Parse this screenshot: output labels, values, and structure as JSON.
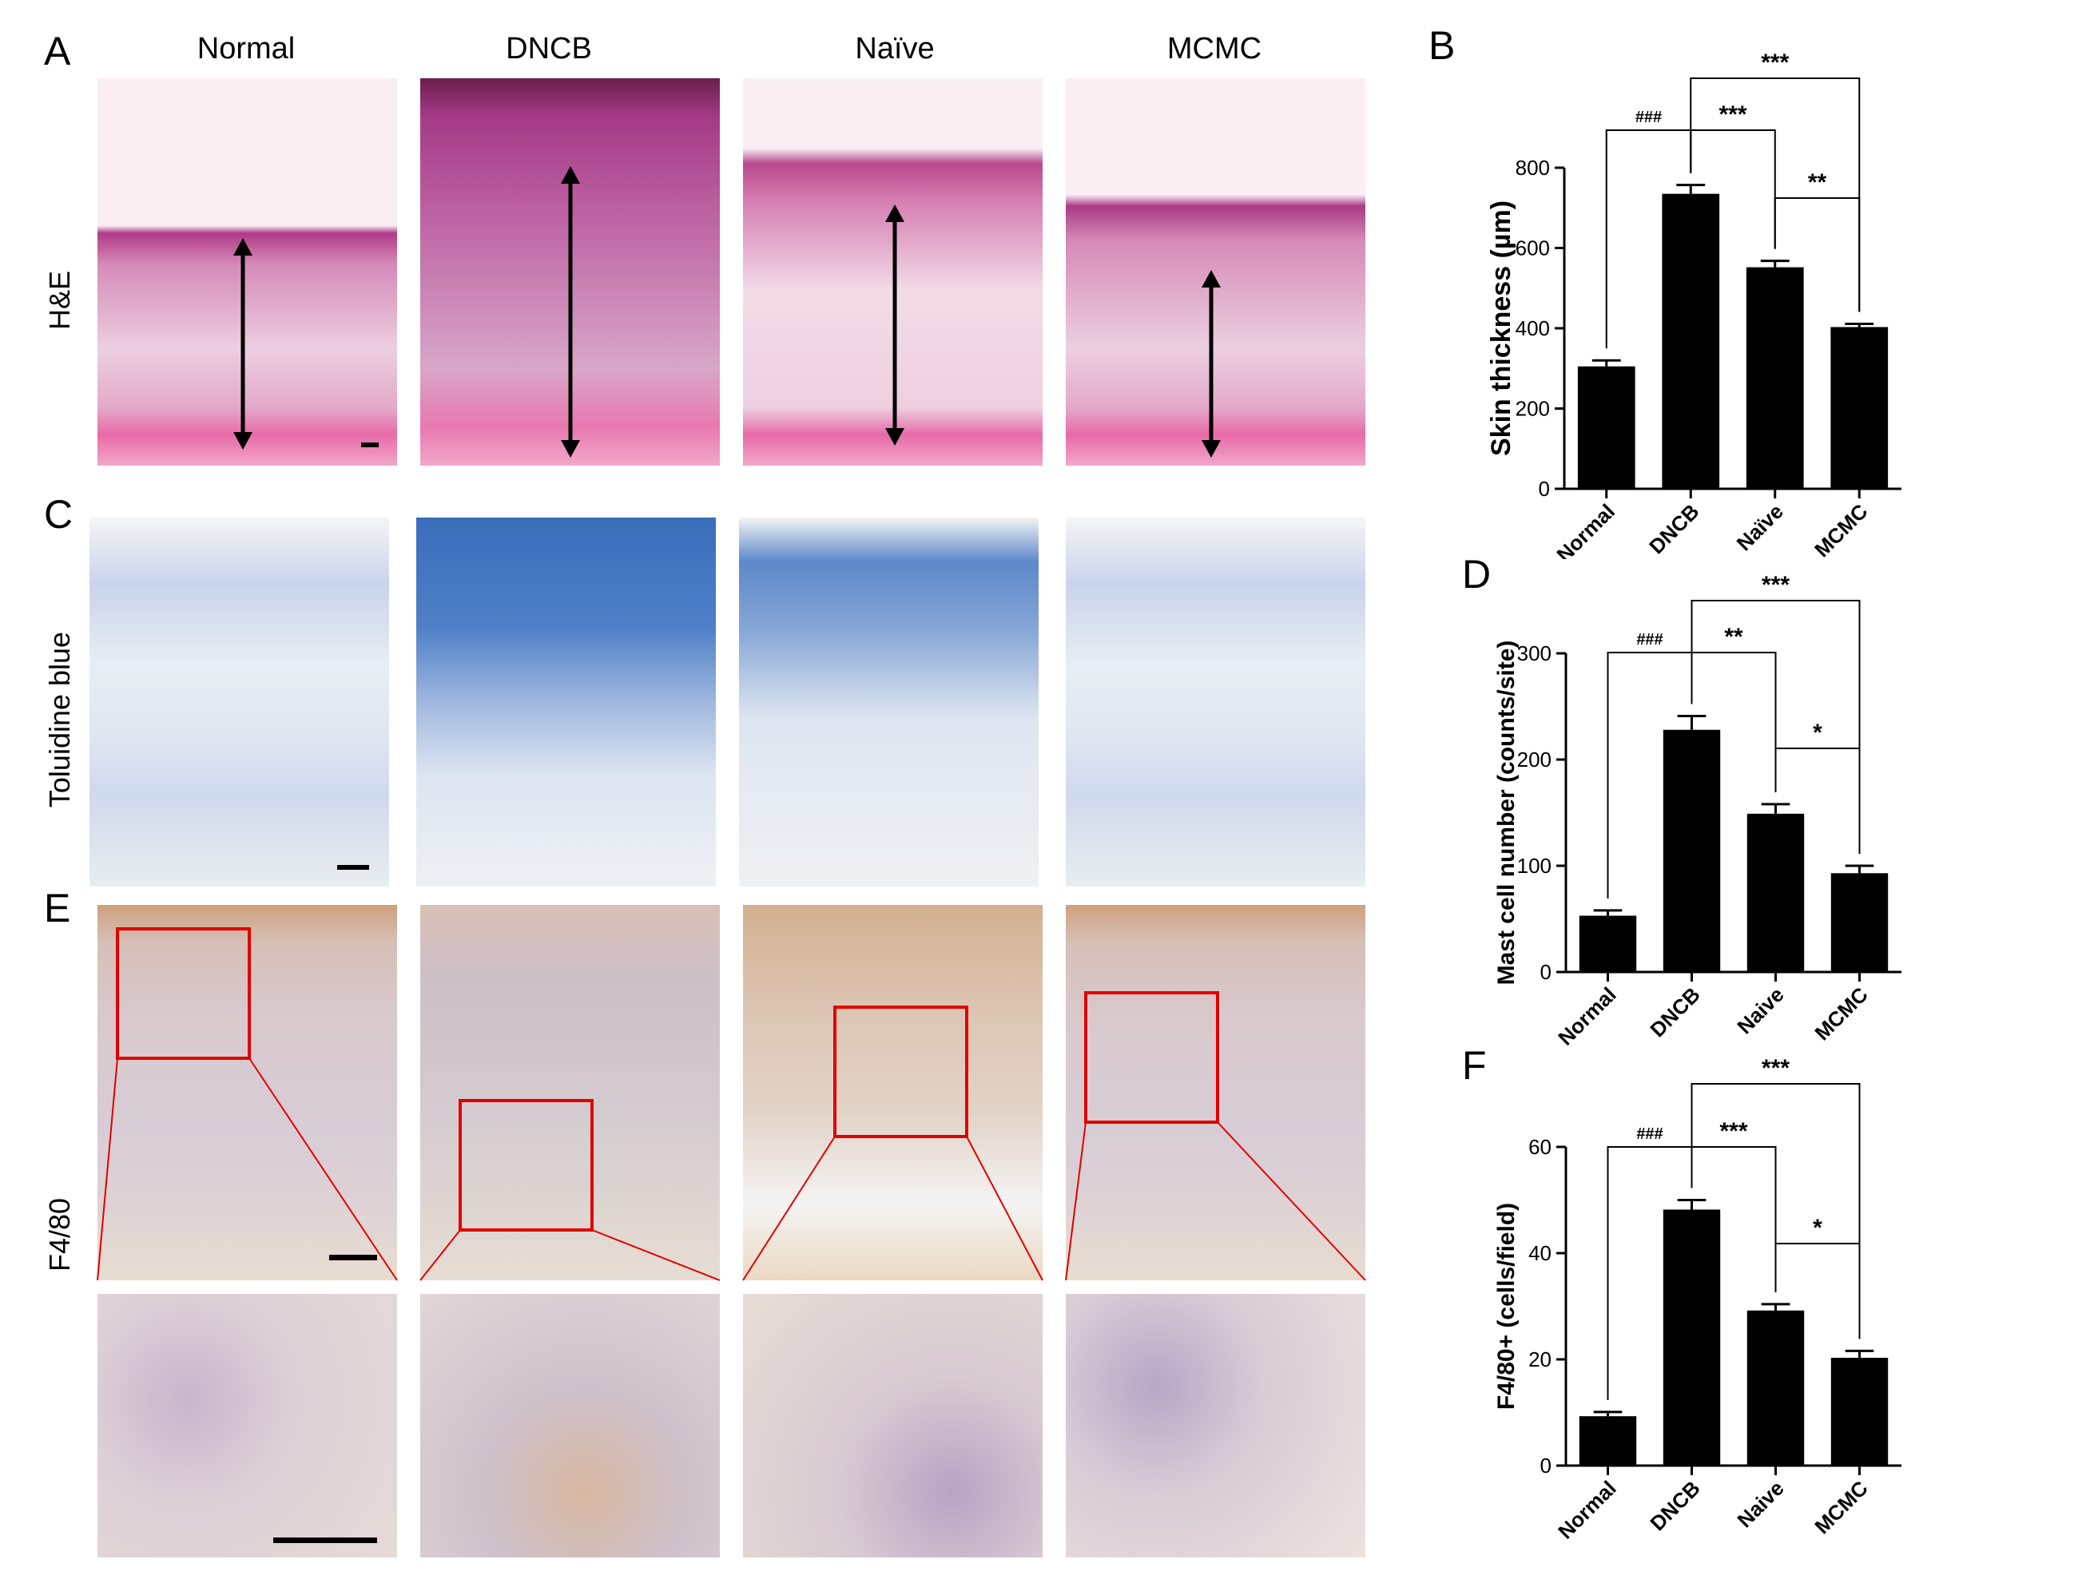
{
  "panel_labels": {
    "A": "A",
    "B": "B",
    "C": "C",
    "D": "D",
    "E": "E",
    "F": "F"
  },
  "columns": [
    "Normal",
    "DNCB",
    "Naïve",
    "MCMC"
  ],
  "rows": {
    "he": "H&E",
    "tb": "Toluidine blue",
    "f4": "F4/80"
  },
  "chart_data": [
    {
      "type": "bar",
      "panel": "B",
      "categories": [
        "Normal",
        "DNCB",
        "Naïve",
        "MCMC"
      ],
      "values": [
        305,
        735,
        552,
        403
      ],
      "errors": [
        15,
        22,
        16,
        8
      ],
      "ylabel": "Skin thickness (µm)",
      "ylim": [
        0,
        800
      ],
      "yticks": [
        0,
        200,
        400,
        600,
        800
      ],
      "significance": [
        {
          "from": 0,
          "to": 1,
          "label": "###"
        },
        {
          "from": 1,
          "to": 2,
          "label": "***"
        },
        {
          "from": 1,
          "to": 3,
          "label": "***"
        },
        {
          "from": 2,
          "to": 3,
          "label": "**"
        }
      ]
    },
    {
      "type": "bar",
      "panel": "D",
      "categories": [
        "Normal",
        "DNCB",
        "Naive",
        "MCMC"
      ],
      "values": [
        53,
        228,
        149,
        93
      ],
      "errors": [
        5,
        13,
        9,
        7
      ],
      "ylabel": "Mast cell number (counts/site)",
      "ylim": [
        0,
        300
      ],
      "yticks": [
        0,
        100,
        200,
        300
      ],
      "significance": [
        {
          "from": 0,
          "to": 1,
          "label": "###"
        },
        {
          "from": 1,
          "to": 2,
          "label": "**"
        },
        {
          "from": 1,
          "to": 3,
          "label": "***"
        },
        {
          "from": 2,
          "to": 3,
          "label": "*"
        }
      ]
    },
    {
      "type": "bar",
      "panel": "F",
      "categories": [
        "Normal",
        "DNCB",
        "Naive",
        "MCMC"
      ],
      "values": [
        9.3,
        48.2,
        29.2,
        20.3
      ],
      "errors": [
        0.8,
        1.8,
        1.2,
        1.3
      ],
      "ylabel": "F4/80+ (cells/field)",
      "ylim": [
        0,
        60
      ],
      "yticks": [
        0,
        20,
        40,
        60
      ],
      "significance": [
        {
          "from": 0,
          "to": 1,
          "label": "###"
        },
        {
          "from": 1,
          "to": 2,
          "label": "***"
        },
        {
          "from": 1,
          "to": 3,
          "label": "***"
        },
        {
          "from": 2,
          "to": 3,
          "label": "*"
        }
      ]
    }
  ]
}
